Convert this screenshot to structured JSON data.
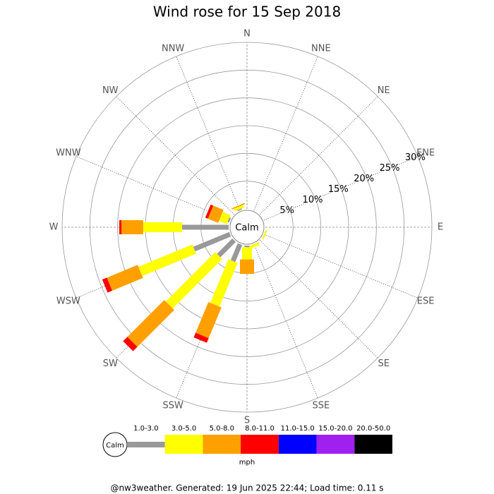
{
  "chart_data": {
    "type": "windrose",
    "title": "Wind rose for 15 Sep 2018",
    "directions": [
      "N",
      "NNE",
      "NE",
      "ENE",
      "E",
      "ESE",
      "SE",
      "SSE",
      "S",
      "SSW",
      "SW",
      "WSW",
      "W",
      "WNW",
      "NW",
      "NNW"
    ],
    "series": [
      {
        "name": "1.0-3.0",
        "color": "#999999",
        "values": [
          0,
          0,
          0,
          0,
          0,
          0,
          0,
          0,
          0.3,
          3.3,
          3.9,
          7.0,
          8.4,
          0.3,
          0,
          0.2
        ]
      },
      {
        "name": "3.0-5.0",
        "color": "#ffff00",
        "values": [
          0,
          0,
          0,
          0,
          0,
          0.3,
          0,
          0.5,
          2.2,
          8.5,
          12.6,
          10.5,
          7.0,
          1.5,
          0,
          0.5
        ]
      },
      {
        "name": "5.0-8.0",
        "color": "#ffa000",
        "values": [
          0,
          0,
          0,
          0,
          0,
          0,
          0,
          0,
          2.6,
          6.0,
          9.4,
          6.0,
          3.9,
          2.0,
          0,
          0.2
        ]
      },
      {
        "name": "8.0-11.0",
        "color": "#ff0000",
        "values": [
          0,
          0,
          0,
          0,
          0,
          0,
          0,
          0,
          0,
          0.9,
          1.1,
          0.9,
          0.4,
          0.5,
          0,
          0
        ]
      },
      {
        "name": "11.0-15.0",
        "color": "#0000ff",
        "values": [
          0,
          0,
          0,
          0,
          0,
          0,
          0,
          0,
          0,
          0,
          0,
          0,
          0,
          0,
          0,
          0
        ]
      },
      {
        "name": "15.0-20.0",
        "color": "#a020f0",
        "values": [
          0,
          0,
          0,
          0,
          0,
          0,
          0,
          0,
          0,
          0,
          0,
          0,
          0,
          0,
          0,
          0
        ]
      },
      {
        "name": "20.0-50.0",
        "color": "#000000",
        "values": [
          0,
          0,
          0,
          0,
          0,
          0,
          0,
          0,
          0,
          0,
          0,
          0,
          0,
          0,
          0,
          0
        ]
      }
    ],
    "rlim": [
      0,
      30
    ],
    "rticks": [
      {
        "value": 5,
        "label": "5%"
      },
      {
        "value": 10,
        "label": "10%"
      },
      {
        "value": 15,
        "label": "15%"
      },
      {
        "value": 20,
        "label": "20%"
      },
      {
        "value": 25,
        "label": "25%"
      },
      {
        "value": 30,
        "label": "30%"
      }
    ],
    "grid": true,
    "center_label": "Calm",
    "legend_unit": "mph"
  },
  "footer": "@nw3weather. Generated: 19 Jun 2025 22:44; Load time: 0.11 s"
}
